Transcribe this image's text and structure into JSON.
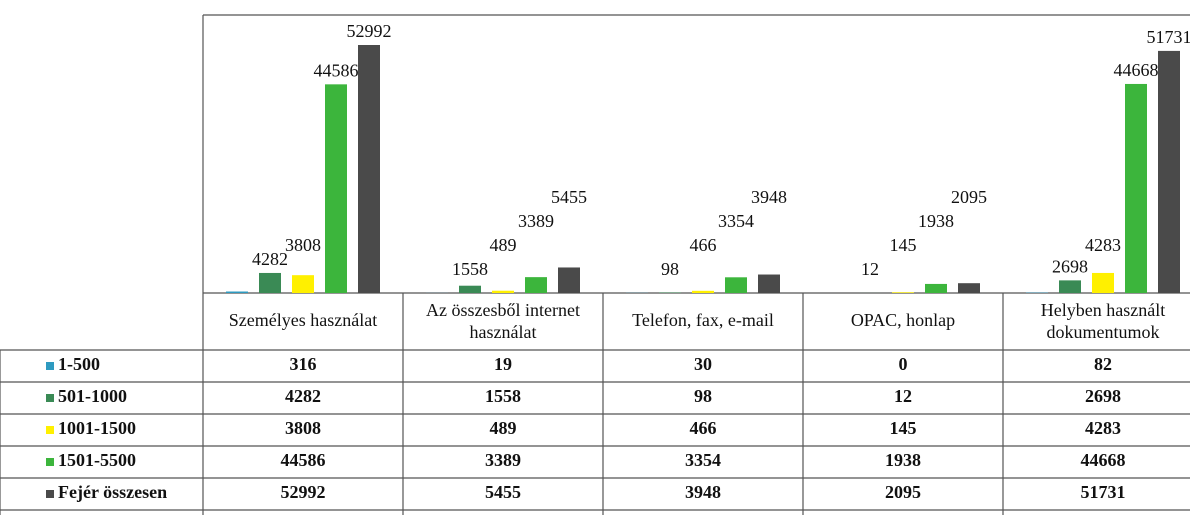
{
  "chart_data": {
    "type": "bar",
    "categories": [
      "Személyes használat",
      [
        "Az összesből internet",
        "használat"
      ],
      "Telefon, fax, e-mail",
      "OPAC, honlap",
      [
        "Helyben használt",
        "dokumentumok"
      ]
    ],
    "series": [
      {
        "name": "1-500",
        "color": "#2e9ac0",
        "values": [
          316,
          19,
          30,
          0,
          82
        ]
      },
      {
        "name": "501-1000",
        "color": "#3a8a55",
        "values": [
          4282,
          1558,
          98,
          12,
          2698
        ]
      },
      {
        "name": "1001-1500",
        "color": "#fff000",
        "values": [
          3808,
          489,
          466,
          145,
          4283
        ]
      },
      {
        "name": "1501-5500",
        "color": "#3cb53c",
        "values": [
          44586,
          3389,
          3354,
          1938,
          44668
        ]
      },
      {
        "name": "Fejér összesen",
        "color": "#4a4a4a",
        "values": [
          52992,
          5455,
          3948,
          2095,
          51731
        ]
      }
    ]
  }
}
